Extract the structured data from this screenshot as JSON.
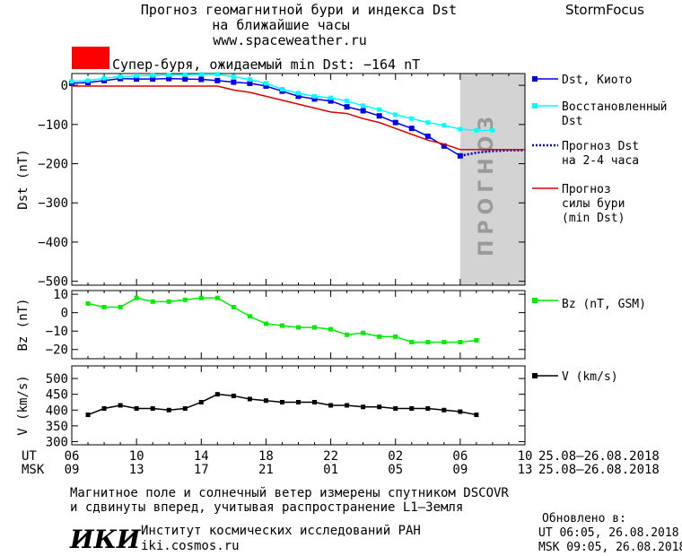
{
  "header": {
    "title_line1": "Прогноз геомагнитной бури и индекса Dst",
    "title_line2": "на ближайшие часы",
    "url": "www.spaceweather.ru",
    "brand": "StormFocus",
    "storm_label": "Супер-буря, ожидаемый min Dst: −164 nT",
    "storm_color": "#ff0000"
  },
  "colors": {
    "dst_kyoto": "#0000ee",
    "dst_restored": "#00ffff",
    "dst_forecast": "#0000cc",
    "storm_forecast": "#dd0000",
    "bz": "#00ee00",
    "v": "#000000",
    "forecast_band": "#d3d3d3"
  },
  "chart_data": [
    {
      "type": "line",
      "panel": "dst",
      "ylabel": "Dst (nT)",
      "ylim": [
        -510,
        30
      ],
      "yticks": [
        0,
        -100,
        -200,
        -300,
        -400,
        -500
      ],
      "ytick_labels": [
        "0",
        "−100",
        "−200",
        "−300",
        "−400",
        "−500"
      ],
      "xlim": [
        0,
        28
      ],
      "forecast_region_label": "ПРОГНОЗ",
      "forecast_region_x": [
        24,
        28
      ],
      "series": [
        {
          "name": "Dst, Киото",
          "x": [
            0,
            1,
            2,
            3,
            4,
            5,
            6,
            7,
            8,
            9,
            10,
            11,
            12,
            13,
            14,
            15,
            16,
            17,
            18,
            19,
            20,
            21,
            22,
            23,
            24
          ],
          "y": [
            5,
            7,
            12,
            17,
            16,
            16,
            17,
            16,
            15,
            12,
            8,
            5,
            -2,
            -15,
            -28,
            -35,
            -40,
            -55,
            -65,
            -78,
            -95,
            -110,
            -130,
            -155,
            -180
          ]
        },
        {
          "name": "Восстановленный Dst",
          "x": [
            0,
            1,
            2,
            3,
            4,
            5,
            6,
            7,
            8,
            9,
            10,
            11,
            12,
            13,
            14,
            15,
            16,
            17,
            18,
            19,
            20,
            21,
            22,
            23,
            24,
            25,
            26
          ],
          "y": [
            10,
            12,
            18,
            22,
            24,
            25,
            26,
            27,
            28,
            28,
            22,
            15,
            5,
            -10,
            -20,
            -28,
            -32,
            -40,
            -52,
            -62,
            -75,
            -85,
            -95,
            -102,
            -112,
            -115,
            -115
          ]
        },
        {
          "name": "Прогноз Dst на 2-4 часа",
          "x": [
            24,
            25,
            26,
            27,
            28
          ],
          "y": [
            -180,
            -172,
            -168,
            -166,
            -166
          ]
        },
        {
          "name": "Прогноз силы бури (min Dst)",
          "x": [
            0,
            9,
            10,
            11,
            12,
            13,
            14,
            15,
            16,
            17,
            18,
            19,
            20,
            21,
            22,
            23,
            24,
            25,
            26,
            27,
            28
          ],
          "y": [
            -2,
            -2,
            -12,
            -18,
            -28,
            -38,
            -48,
            -58,
            -68,
            -72,
            -85,
            -95,
            -110,
            -125,
            -140,
            -150,
            -164,
            -164,
            -164,
            -164,
            -164
          ]
        }
      ]
    },
    {
      "type": "line",
      "panel": "bz",
      "ylabel": "Bz (nT)",
      "ylim": [
        -25,
        12
      ],
      "yticks": [
        10,
        0,
        -10,
        -20
      ],
      "ytick_labels": [
        "10",
        "0",
        "−10",
        "−20"
      ],
      "xlim": [
        0,
        28
      ],
      "series": [
        {
          "name": "Bz (nT, GSM)",
          "x": [
            1,
            2,
            3,
            4,
            5,
            6,
            7,
            8,
            9,
            10,
            11,
            12,
            13,
            14,
            15,
            16,
            17,
            18,
            19,
            20,
            21,
            22,
            23,
            24,
            25
          ],
          "y": [
            5,
            3,
            3,
            8,
            6,
            6,
            7,
            8,
            8,
            3,
            -2,
            -6,
            -7,
            -8,
            -8,
            -9,
            -12,
            -11,
            -13,
            -13,
            -16,
            -16,
            -16,
            -16,
            -15
          ]
        }
      ]
    },
    {
      "type": "line",
      "panel": "v",
      "ylabel": "V (km/s)",
      "ylim": [
        290,
        540
      ],
      "yticks": [
        500,
        450,
        400,
        350,
        300
      ],
      "ytick_labels": [
        "500",
        "450",
        "400",
        "350",
        "300"
      ],
      "xlim": [
        0,
        28
      ],
      "series": [
        {
          "name": "V (km/s)",
          "x": [
            1,
            2,
            3,
            4,
            5,
            6,
            7,
            8,
            9,
            10,
            11,
            12,
            13,
            14,
            15,
            16,
            17,
            18,
            19,
            20,
            21,
            22,
            23,
            24,
            25
          ],
          "y": [
            385,
            405,
            415,
            405,
            405,
            400,
            405,
            425,
            450,
            445,
            435,
            430,
            425,
            425,
            425,
            415,
            415,
            410,
            410,
            405,
            405,
            405,
            400,
            395,
            385
          ]
        }
      ]
    }
  ],
  "xaxis": {
    "row1_label": "UT",
    "row2_label": "MSK",
    "ut_ticks": [
      "06",
      "10",
      "14",
      "18",
      "22",
      "02",
      "06",
      "10"
    ],
    "msk_ticks": [
      "09",
      "13",
      "17",
      "21",
      "01",
      "05",
      "09",
      "13"
    ],
    "date_range": "25.08–26.08.2018"
  },
  "footer": {
    "note_line1": "Магнитное поле и солнечный ветер измерены спутником DSCOVR",
    "note_line2": "и сдвинуты вперед, учитывая распространение L1–Земля",
    "institute_logo": "ИКИ",
    "institute_name": "Институт космических исследований РАН",
    "institute_url": "iki.cosmos.ru",
    "updated_title": "Обновлено в:",
    "updated_ut": "UT   06:05, 26.08.2018",
    "updated_msk": "MSK 09:05, 26.08.2018"
  }
}
